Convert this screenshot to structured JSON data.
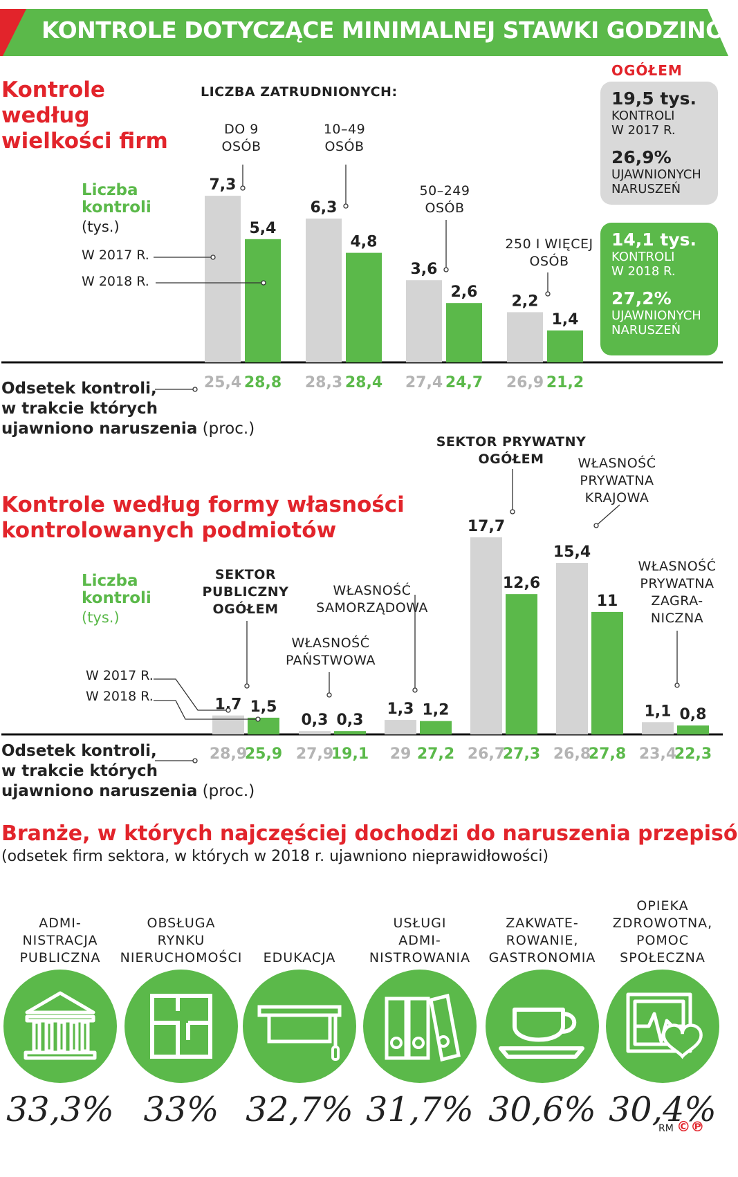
{
  "banner": {
    "title": "KONTROLE DOTYCZĄCE MINIMALNEJ STAWKI GODZINOWEJ",
    "color": "#5bb94a",
    "accent": "#e2242b"
  },
  "section1": {
    "title": "Kontrole\nwedług\nwielkości firm",
    "employees_header": "LICZBA ZATRUDNIONYCH:",
    "legend_title": "Liczba\nkontroli",
    "legend_unit": "(tys.)",
    "legend_2017": "W 2017 R.",
    "legend_2018": "W 2018 R.",
    "pct_label_bold": "Odsetek kontroli,\nw trakcie których\nujawniono naruszenia",
    "pct_label_unit": "(proc.)"
  },
  "totals": {
    "header": "OGÓŁEM",
    "y2017": {
      "value": "19,5 tys.",
      "line": "KONTROLI\nW 2017 R.",
      "pct": "26,9%",
      "pct_line": "UJAWNIONYCH\nNARUSZEŃ"
    },
    "y2018": {
      "value": "14,1 tys.",
      "line": "KONTROLI\nW 2018 R.",
      "pct": "27,2%",
      "pct_line": "UJAWNIONYCH\nNARUSZEŃ"
    }
  },
  "section2": {
    "title": "Kontrole według formy własności\nkontrolowanych podmiotów",
    "legend_title": "Liczba\nkontroli",
    "legend_unit": "(tys.)",
    "legend_2017": "W 2017 R.",
    "legend_2018": "W 2018 R.",
    "pct_label_bold": "Odsetek kontroli,\nw trakcie których\nujawniono naruszenia",
    "pct_label_unit": "(proc.)"
  },
  "section3": {
    "title": "Branże, w których najczęściej dochodzi do naruszenia przepisów",
    "subtitle": "(odsetek firm sektora, w których w 2018 r. ujawniono nieprawidłowości)",
    "sectors": [
      {
        "label": "ADMI-\nNISTRACJA\nPUBLICZNA",
        "value": "33,3%",
        "icon": "bank-icon"
      },
      {
        "label": "OBSŁUGA\nRYNKU\nNIERUCHOMOŚCI",
        "value": "33%",
        "icon": "floorplan-icon"
      },
      {
        "label": "EDUKACJA",
        "value": "32,7%",
        "icon": "graduation-cap-icon"
      },
      {
        "label": "USŁUGI\nADMI-\nNISTROWANIA",
        "value": "31,7%",
        "icon": "binders-icon"
      },
      {
        "label": "ZAKWATE-\nROWANIE,\nGASTRONOMIA",
        "value": "30,6%",
        "icon": "cup-icon"
      },
      {
        "label": "OPIEKA\nZDROWOTNA,\nPOMOC\nSPOŁECZNA",
        "value": "30,4%",
        "icon": "heart-monitor-icon"
      }
    ]
  },
  "footer": {
    "credit": "RM",
    "symbols": "©℗"
  },
  "chart_data": [
    {
      "type": "bar",
      "categories": [
        "DO 9\nOSÓB",
        "10–49\nOSÓB",
        "50–249\nOSÓB",
        "250 I WIĘCEJ\nOSÓB"
      ],
      "series": [
        {
          "name": "W 2017 R.",
          "values": [
            7.3,
            6.3,
            3.6,
            2.2
          ],
          "labels": [
            "7,3",
            "6,3",
            "3,6",
            "2,2"
          ],
          "pct": [
            "25,4",
            "28,3",
            "27,4",
            "26,9"
          ]
        },
        {
          "name": "W 2018 R.",
          "values": [
            5.4,
            4.8,
            2.6,
            1.4
          ],
          "labels": [
            "5,4",
            "4,8",
            "2,6",
            "1,4"
          ],
          "pct": [
            "28,8",
            "28,4",
            "24,7",
            "21,2"
          ]
        }
      ],
      "colors": {
        "y2017": "#d4d4d4",
        "y2018": "#5bb94a"
      }
    },
    {
      "type": "bar",
      "categories": [
        "SEKTOR\nPUBLICZNY\nOGÓŁEM",
        "WŁASNOŚĆ\nPAŃSTWOWA",
        "WŁASNOŚĆ\nSAMORZĄDOWA",
        "SEKTOR PRYWATNY\nOGÓŁEM",
        "WŁASNOŚĆ\nPRYWATNA\nKRAJOWA",
        "WŁASNOŚĆ\nPRYWATNA\nZAGRA-\nNICZNA"
      ],
      "series": [
        {
          "name": "W 2017 R.",
          "values": [
            1.7,
            0.3,
            1.3,
            17.7,
            15.4,
            1.1
          ],
          "labels": [
            "1,7",
            "0,3",
            "1,3",
            "17,7",
            "15,4",
            "1,1"
          ],
          "pct": [
            "28,9",
            "27,9",
            "29",
            "26,7",
            "26,8",
            "23,4"
          ]
        },
        {
          "name": "W 2018 R.",
          "values": [
            1.5,
            0.3,
            1.2,
            12.6,
            11.0,
            0.8
          ],
          "labels": [
            "1,5",
            "0,3",
            "1,2",
            "12,6",
            "11",
            "0,8"
          ],
          "pct": [
            "25,9",
            "19,1",
            "27,2",
            "27,3",
            "27,8",
            "22,3"
          ]
        }
      ],
      "colors": {
        "y2017": "#d4d4d4",
        "y2018": "#5bb94a"
      }
    }
  ]
}
